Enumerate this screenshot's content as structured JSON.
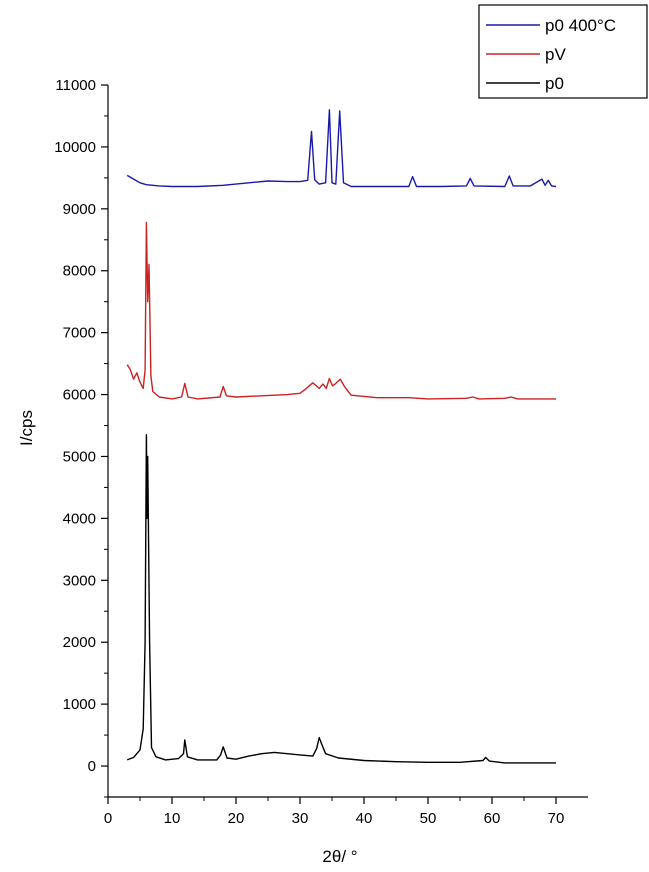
{
  "chart_data": {
    "type": "line",
    "xlabel": "2θ/ °",
    "ylabel": "I/cps",
    "xlim": [
      0,
      75
    ],
    "ylim": [
      -500,
      11000
    ],
    "x_ticks": [
      0,
      10,
      20,
      30,
      40,
      50,
      60,
      70
    ],
    "x_tick_labels": [
      "0",
      "10",
      "20",
      "30",
      "40",
      "50",
      "60",
      "70"
    ],
    "y_ticks": [
      0,
      1000,
      2000,
      3000,
      4000,
      5000,
      6000,
      7000,
      8000,
      9000,
      10000,
      11000
    ],
    "y_tick_labels": [
      "0",
      "1000",
      "2000",
      "3000",
      "4000",
      "5000",
      "6000",
      "7000",
      "8000",
      "9000",
      "10000",
      "11000"
    ],
    "grid": false,
    "legend_position": "top-right",
    "series": [
      {
        "name": "p0 400°C",
        "color": "#1a1aaa",
        "points": [
          [
            3.0,
            9540
          ],
          [
            4.0,
            9480
          ],
          [
            5.0,
            9420
          ],
          [
            6.0,
            9390
          ],
          [
            8.0,
            9370
          ],
          [
            10.0,
            9360
          ],
          [
            14.0,
            9360
          ],
          [
            18.0,
            9380
          ],
          [
            22.0,
            9420
          ],
          [
            25.0,
            9450
          ],
          [
            28.0,
            9440
          ],
          [
            30.0,
            9440
          ],
          [
            31.2,
            9460
          ],
          [
            31.8,
            10250
          ],
          [
            32.3,
            9470
          ],
          [
            33.0,
            9400
          ],
          [
            34.0,
            9420
          ],
          [
            34.6,
            10600
          ],
          [
            35.0,
            9420
          ],
          [
            35.6,
            9400
          ],
          [
            36.2,
            10580
          ],
          [
            36.8,
            9420
          ],
          [
            38.0,
            9360
          ],
          [
            42.0,
            9360
          ],
          [
            47.0,
            9360
          ],
          [
            47.6,
            9520
          ],
          [
            48.2,
            9360
          ],
          [
            52.0,
            9360
          ],
          [
            56.0,
            9370
          ],
          [
            56.6,
            9490
          ],
          [
            57.2,
            9370
          ],
          [
            62.0,
            9360
          ],
          [
            62.7,
            9530
          ],
          [
            63.3,
            9370
          ],
          [
            66.0,
            9370
          ],
          [
            67.8,
            9480
          ],
          [
            68.3,
            9380
          ],
          [
            68.8,
            9460
          ],
          [
            69.3,
            9370
          ],
          [
            70.0,
            9360
          ]
        ]
      },
      {
        "name": "pV",
        "color": "#cc2222",
        "points": [
          [
            3.0,
            6480
          ],
          [
            3.5,
            6400
          ],
          [
            4.0,
            6250
          ],
          [
            4.5,
            6350
          ],
          [
            5.0,
            6200
          ],
          [
            5.5,
            6100
          ],
          [
            5.8,
            6400
          ],
          [
            6.0,
            8780
          ],
          [
            6.2,
            7500
          ],
          [
            6.4,
            8100
          ],
          [
            6.7,
            6300
          ],
          [
            7.0,
            6050
          ],
          [
            8.0,
            5960
          ],
          [
            10.0,
            5930
          ],
          [
            11.5,
            5960
          ],
          [
            12.0,
            6180
          ],
          [
            12.5,
            5960
          ],
          [
            14.0,
            5930
          ],
          [
            17.5,
            5960
          ],
          [
            18.0,
            6130
          ],
          [
            18.5,
            5980
          ],
          [
            20.0,
            5960
          ],
          [
            24.0,
            5980
          ],
          [
            28.0,
            6000
          ],
          [
            30.0,
            6020
          ],
          [
            31.0,
            6100
          ],
          [
            32.0,
            6190
          ],
          [
            33.0,
            6100
          ],
          [
            33.6,
            6170
          ],
          [
            34.1,
            6100
          ],
          [
            34.6,
            6260
          ],
          [
            35.1,
            6140
          ],
          [
            35.6,
            6180
          ],
          [
            36.3,
            6250
          ],
          [
            37.0,
            6120
          ],
          [
            38.0,
            5990
          ],
          [
            42.0,
            5950
          ],
          [
            47.0,
            5950
          ],
          [
            50.0,
            5930
          ],
          [
            56.0,
            5940
          ],
          [
            57.0,
            5960
          ],
          [
            58.0,
            5930
          ],
          [
            62.0,
            5940
          ],
          [
            63.0,
            5960
          ],
          [
            64.0,
            5930
          ],
          [
            70.0,
            5930
          ]
        ]
      },
      {
        "name": "p0",
        "color": "#000000",
        "points": [
          [
            3.0,
            100
          ],
          [
            4.0,
            140
          ],
          [
            5.0,
            260
          ],
          [
            5.5,
            600
          ],
          [
            5.8,
            2000
          ],
          [
            6.0,
            5350
          ],
          [
            6.1,
            4000
          ],
          [
            6.2,
            5000
          ],
          [
            6.5,
            2000
          ],
          [
            6.8,
            300
          ],
          [
            7.5,
            150
          ],
          [
            9.0,
            100
          ],
          [
            11.0,
            120
          ],
          [
            11.8,
            200
          ],
          [
            12.0,
            420
          ],
          [
            12.4,
            150
          ],
          [
            14.0,
            100
          ],
          [
            17.0,
            100
          ],
          [
            17.6,
            180
          ],
          [
            18.0,
            310
          ],
          [
            18.6,
            130
          ],
          [
            20.0,
            110
          ],
          [
            22.0,
            160
          ],
          [
            24.0,
            200
          ],
          [
            26.0,
            220
          ],
          [
            28.0,
            200
          ],
          [
            30.0,
            180
          ],
          [
            32.0,
            160
          ],
          [
            32.6,
            280
          ],
          [
            33.0,
            460
          ],
          [
            33.4,
            350
          ],
          [
            34.0,
            200
          ],
          [
            36.0,
            130
          ],
          [
            40.0,
            90
          ],
          [
            45.0,
            70
          ],
          [
            50.0,
            60
          ],
          [
            55.0,
            60
          ],
          [
            58.6,
            90
          ],
          [
            59.0,
            140
          ],
          [
            59.6,
            80
          ],
          [
            62.0,
            50
          ],
          [
            66.0,
            50
          ],
          [
            70.0,
            50
          ]
        ]
      }
    ]
  }
}
